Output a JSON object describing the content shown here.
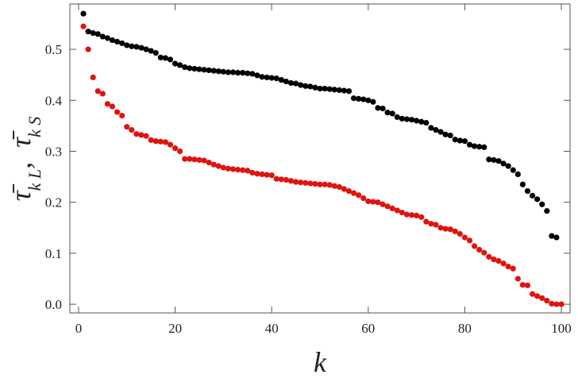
{
  "chart_data": {
    "type": "scatter",
    "xlabel": "k",
    "ylabel": [
      "τ̄",
      "k L",
      ",",
      "τ̄",
      "k S"
    ],
    "x": [
      1,
      2,
      3,
      4,
      5,
      6,
      7,
      8,
      9,
      10,
      11,
      12,
      13,
      14,
      15,
      16,
      17,
      18,
      19,
      20,
      21,
      22,
      23,
      24,
      25,
      26,
      27,
      28,
      29,
      30,
      31,
      32,
      33,
      34,
      35,
      36,
      37,
      38,
      39,
      40,
      41,
      42,
      43,
      44,
      45,
      46,
      47,
      48,
      49,
      50,
      51,
      52,
      53,
      54,
      55,
      56,
      57,
      58,
      59,
      60,
      61,
      62,
      63,
      64,
      65,
      66,
      67,
      68,
      69,
      70,
      71,
      72,
      73,
      74,
      75,
      76,
      77,
      78,
      79,
      80,
      81,
      82,
      83,
      84,
      85,
      86,
      87,
      88,
      89,
      90,
      91,
      92,
      93,
      94,
      95,
      96,
      97,
      98,
      99,
      100
    ],
    "series": [
      {
        "color": "#000000",
        "values": [
          0.57,
          0.535,
          0.532,
          0.53,
          0.525,
          0.522,
          0.518,
          0.515,
          0.512,
          0.508,
          0.506,
          0.505,
          0.503,
          0.5,
          0.497,
          0.493,
          0.484,
          0.483,
          0.48,
          0.472,
          0.469,
          0.465,
          0.463,
          0.462,
          0.461,
          0.46,
          0.459,
          0.458,
          0.457,
          0.456,
          0.455,
          0.455,
          0.454,
          0.454,
          0.453,
          0.452,
          0.449,
          0.446,
          0.445,
          0.444,
          0.443,
          0.44,
          0.437,
          0.434,
          0.433,
          0.43,
          0.428,
          0.427,
          0.425,
          0.423,
          0.423,
          0.422,
          0.421,
          0.42,
          0.419,
          0.418,
          0.404,
          0.403,
          0.402,
          0.4,
          0.397,
          0.385,
          0.384,
          0.376,
          0.374,
          0.367,
          0.364,
          0.363,
          0.362,
          0.36,
          0.358,
          0.356,
          0.346,
          0.342,
          0.338,
          0.333,
          0.331,
          0.323,
          0.321,
          0.32,
          0.313,
          0.31,
          0.309,
          0.308,
          0.284,
          0.283,
          0.281,
          0.276,
          0.271,
          0.263,
          0.255,
          0.235,
          0.222,
          0.213,
          0.206,
          0.196,
          0.183,
          0.134,
          0.131,
          null
        ]
      },
      {
        "color": "#e0130f",
        "values": [
          0.545,
          0.5,
          0.445,
          0.418,
          0.413,
          0.393,
          0.388,
          0.377,
          0.37,
          0.348,
          0.342,
          0.334,
          0.332,
          0.33,
          0.322,
          0.32,
          0.319,
          0.318,
          0.313,
          0.306,
          0.3,
          0.285,
          0.285,
          0.284,
          0.283,
          0.282,
          0.278,
          0.274,
          0.271,
          0.268,
          0.266,
          0.265,
          0.264,
          0.263,
          0.262,
          0.258,
          0.256,
          0.255,
          0.254,
          0.253,
          0.246,
          0.245,
          0.244,
          0.242,
          0.24,
          0.239,
          0.238,
          0.237,
          0.236,
          0.235,
          0.235,
          0.234,
          0.232,
          0.23,
          0.226,
          0.222,
          0.218,
          0.214,
          0.208,
          0.202,
          0.201,
          0.2,
          0.196,
          0.192,
          0.188,
          0.184,
          0.18,
          0.176,
          0.175,
          0.174,
          0.171,
          0.162,
          0.158,
          0.156,
          0.15,
          0.148,
          0.147,
          0.143,
          0.138,
          0.131,
          0.125,
          0.114,
          0.107,
          0.101,
          0.093,
          0.088,
          0.085,
          0.08,
          0.074,
          0.07,
          0.05,
          0.038,
          0.037,
          0.02,
          0.016,
          0.012,
          0.007,
          0.001,
          0,
          0
        ]
      }
    ],
    "xlim": [
      -1.8,
      101.8
    ],
    "xticks": [
      0,
      20,
      40,
      60,
      80,
      100
    ],
    "ylim": [
      -0.017,
      0.589
    ],
    "yticks": [
      {
        "value": 0,
        "label": "0.0"
      },
      0.1,
      0.2,
      0.3,
      0.4,
      0.5
    ]
  }
}
